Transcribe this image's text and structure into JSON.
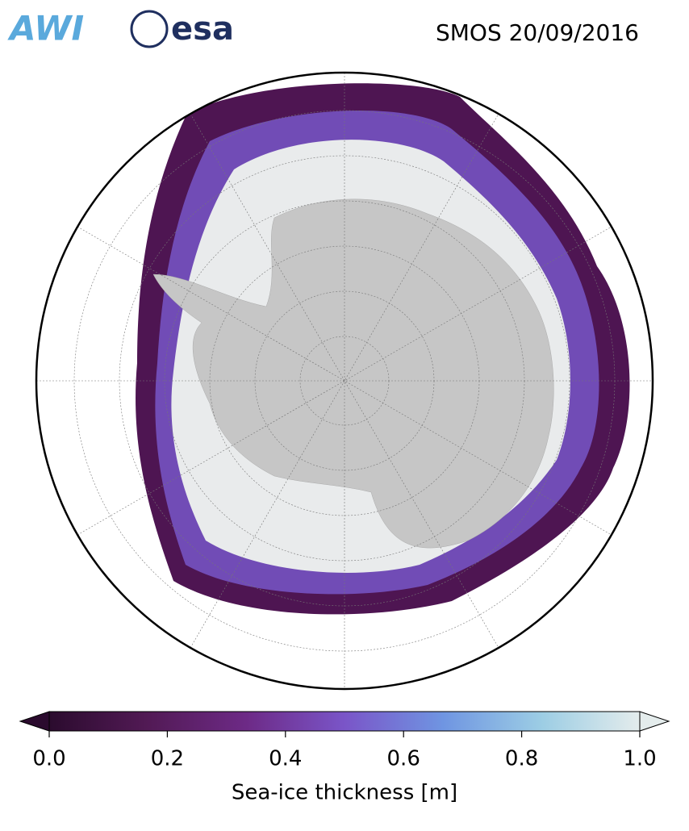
{
  "header": {
    "logo_left": "AWI",
    "logo_right": "esa",
    "title": "SMOS 20/09/2016"
  },
  "colorbar": {
    "label": "Sea-ice thickness [m]",
    "lim": [
      0,
      1
    ],
    "ticks": [
      {
        "value": 0,
        "label": "0.0"
      },
      {
        "value": 0.2,
        "label": "0.2"
      },
      {
        "value": 0.4,
        "label": "0.4"
      },
      {
        "value": 0.6,
        "label": "0.6"
      },
      {
        "value": 0.8,
        "label": "0.8"
      },
      {
        "value": 1,
        "label": "1.0"
      }
    ],
    "colors": [
      "#2b0b2e",
      "#521a55",
      "#6d2a86",
      "#7a55c8",
      "#6f95e2",
      "#9ccde4",
      "#e4ecec"
    ]
  }
}
